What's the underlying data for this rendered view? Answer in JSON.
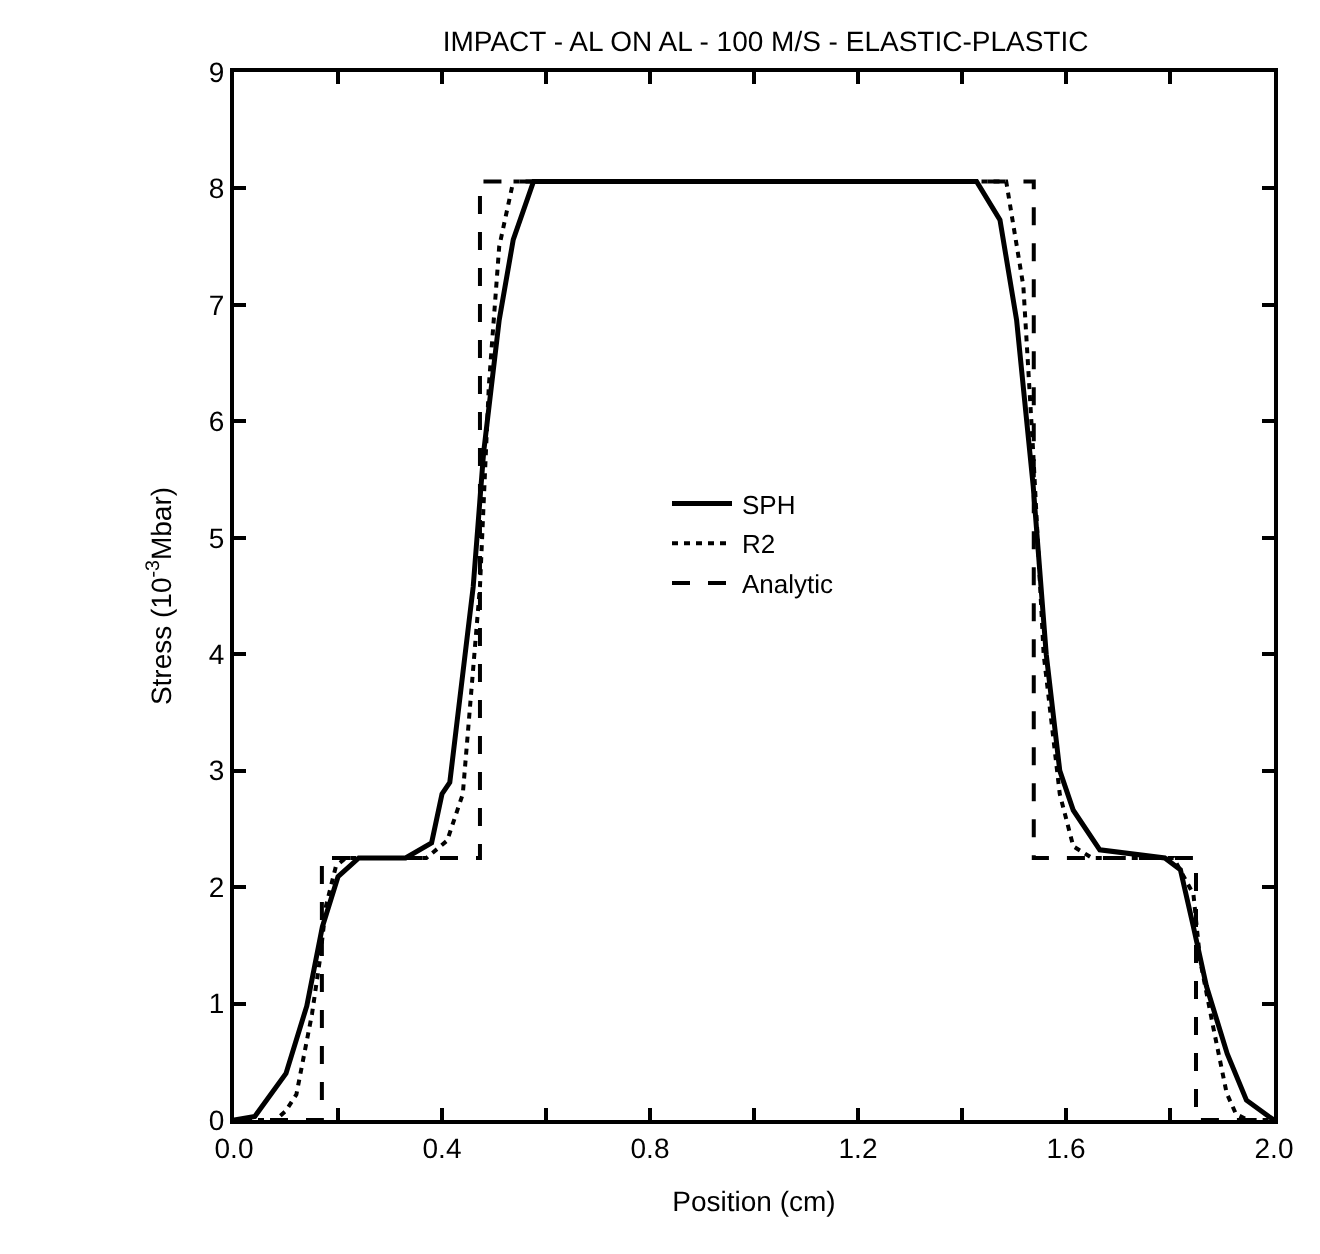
{
  "chart_data": {
    "type": "line",
    "title": "IMPACT - AL ON AL - 100 M/S - ELASTIC-PLASTIC",
    "xlabel": "Position (cm)",
    "ylabel": "Stress (10$^{-3}$Mbar)",
    "xlim": [
      0,
      2
    ],
    "ylim": [
      0,
      9
    ],
    "xticks": [
      {
        "value": 0,
        "label": "0.0"
      },
      {
        "value": 0.2,
        "label": null
      },
      {
        "value": 0.4,
        "label": "0.4"
      },
      {
        "value": 0.6,
        "label": null
      },
      {
        "value": 0.8,
        "label": "0.8"
      },
      {
        "value": 1.0,
        "label": null
      },
      {
        "value": 1.2,
        "label": "1.2"
      },
      {
        "value": 1.4,
        "label": null
      },
      {
        "value": 1.6,
        "label": "1.6"
      },
      {
        "value": 1.8,
        "label": null
      },
      {
        "value": 2,
        "label": "2.0"
      }
    ],
    "yticks": [
      0,
      1,
      2,
      3,
      4,
      5,
      6,
      7,
      8,
      9
    ],
    "legend": "center",
    "series": [
      {
        "name": "SPH",
        "color": "#000000",
        "line_style": "solid",
        "x": [
          0,
          0.04,
          0.1,
          0.14,
          0.17,
          0.2,
          0.24,
          0.33,
          0.38,
          0.4,
          0.415,
          0.46,
          0.48,
          0.51,
          0.537,
          0.576,
          1.428,
          1.473,
          1.505,
          1.537,
          1.562,
          1.588,
          1.614,
          1.665,
          1.79,
          1.82,
          1.845,
          1.87,
          1.91,
          1.947,
          1.99,
          2.0
        ],
        "values": [
          0,
          0.03,
          0.4,
          0.98,
          1.66,
          2.09,
          2.25,
          2.25,
          2.38,
          2.8,
          2.9,
          4.58,
          5.73,
          6.87,
          7.56,
          8.06,
          8.06,
          7.73,
          6.87,
          5.44,
          4.0,
          3.0,
          2.66,
          2.32,
          2.25,
          2.15,
          1.66,
          1.15,
          0.57,
          0.17,
          0.03,
          0
        ]
      },
      {
        "name": "R2",
        "color": "#000000",
        "line_style": "dotted",
        "x": [
          0,
          0.08,
          0.1,
          0.12,
          0.15,
          0.165,
          0.177,
          0.196,
          0.215,
          0.37,
          0.41,
          0.44,
          0.473,
          0.49,
          0.51,
          0.537,
          1.485,
          1.518,
          1.537,
          1.557,
          1.588,
          1.614,
          1.65,
          1.807,
          1.845,
          1.858,
          1.883,
          1.909,
          1.927,
          1.95,
          2.0
        ],
        "values": [
          0,
          0,
          0.08,
          0.22,
          0.91,
          1.37,
          1.84,
          2.18,
          2.25,
          2.25,
          2.4,
          2.8,
          4.58,
          6.3,
          7.5,
          8.06,
          8.06,
          7.16,
          5.73,
          4.0,
          2.8,
          2.35,
          2.25,
          2.25,
          1.94,
          1.37,
          0.8,
          0.23,
          0.05,
          0,
          0
        ]
      },
      {
        "name": "Analytic",
        "color": "#000000",
        "line_style": "dashed",
        "x": [
          0,
          0.169,
          0.169,
          0.473,
          0.473,
          1.538,
          1.538,
          1.85,
          1.85,
          2.0
        ],
        "values": [
          0,
          0,
          2.25,
          2.25,
          8.06,
          8.06,
          2.25,
          2.25,
          0,
          0
        ]
      }
    ]
  }
}
